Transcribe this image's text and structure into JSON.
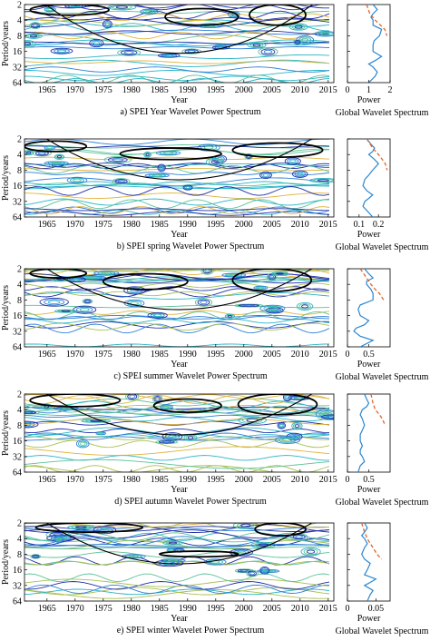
{
  "chart_data": [
    {
      "type": "heatmap",
      "title": "a) SPEI Year Wavelet Power Spectrum",
      "xlabel": "Year",
      "ylabel": "Period/years",
      "xlim": [
        1961,
        2016
      ],
      "xticks": [
        1965,
        1970,
        1975,
        1980,
        1985,
        1990,
        1995,
        2000,
        2005,
        2010,
        2015
      ],
      "yticks": [
        2,
        4,
        8,
        16,
        32,
        64
      ],
      "ylim": [
        2,
        64
      ],
      "yscale": "log2",
      "coi_bottom_period": 20,
      "significant_regions": [
        {
          "x": [
            1962,
            1976
          ],
          "y": [
            2,
            3.2
          ]
        },
        {
          "x": [
            1986,
            1999
          ],
          "y": [
            2.4,
            5
          ]
        },
        {
          "x": [
            2001,
            2011
          ],
          "y": [
            2,
            5
          ]
        }
      ],
      "global": {
        "title": "Global Wavelet Spectrum",
        "xlabel": "Power",
        "xlim": [
          0,
          2
        ],
        "xticks": [
          0,
          1,
          2
        ],
        "power": [
          [
            2,
            1.2
          ],
          [
            2.5,
            1.4
          ],
          [
            3,
            1.2
          ],
          [
            3.5,
            1.1
          ],
          [
            4,
            1.2
          ],
          [
            5,
            1.2
          ],
          [
            6,
            1.6
          ],
          [
            8,
            1.5
          ],
          [
            10,
            1.25
          ],
          [
            12,
            1.2
          ],
          [
            16,
            1.2
          ],
          [
            20,
            1.6
          ],
          [
            24,
            1.3
          ],
          [
            28,
            1.0
          ],
          [
            32,
            1.2
          ],
          [
            40,
            1.4
          ],
          [
            48,
            1.3
          ],
          [
            64,
            1.0
          ]
        ],
        "significance": [
          [
            2,
            0.9
          ],
          [
            3,
            1.05
          ],
          [
            4,
            1.3
          ],
          [
            5,
            1.55
          ],
          [
            6,
            1.75
          ],
          [
            8,
            1.85
          ]
        ]
      }
    },
    {
      "type": "heatmap",
      "title": "b) SPEI spring Wavelet Power Spectrum",
      "xlabel": "Year",
      "ylabel": "Period/years",
      "xlim": [
        1961,
        2016
      ],
      "xticks": [
        1965,
        1970,
        1975,
        1980,
        1985,
        1990,
        1995,
        2000,
        2005,
        2010,
        2015
      ],
      "yticks": [
        2,
        4,
        8,
        16,
        32,
        64
      ],
      "ylim": [
        2,
        64
      ],
      "yscale": "log2",
      "coi_bottom_period": 14,
      "significant_regions": [
        {
          "x": [
            1961,
            1972
          ],
          "y": [
            2.2,
            3.5
          ]
        },
        {
          "x": [
            1978,
            1996
          ],
          "y": [
            3,
            5
          ]
        },
        {
          "x": [
            1998,
            2014
          ],
          "y": [
            2.4,
            4.5
          ]
        }
      ],
      "global": {
        "title": "Global Wavelet Spectrum",
        "xlabel": "Power",
        "xlim": [
          0.04,
          0.26
        ],
        "xticks": [
          0.1,
          0.2
        ],
        "power": [
          [
            2,
            0.14
          ],
          [
            2.5,
            0.16
          ],
          [
            3,
            0.18
          ],
          [
            3.5,
            0.17
          ],
          [
            4,
            0.15
          ],
          [
            5,
            0.18
          ],
          [
            6,
            0.2
          ],
          [
            8,
            0.17
          ],
          [
            10,
            0.15
          ],
          [
            12,
            0.13
          ],
          [
            16,
            0.12
          ],
          [
            20,
            0.14
          ],
          [
            24,
            0.17
          ],
          [
            28,
            0.15
          ],
          [
            32,
            0.13
          ],
          [
            40,
            0.12
          ],
          [
            48,
            0.14
          ],
          [
            64,
            0.17
          ]
        ],
        "significance": [
          [
            2,
            0.14
          ],
          [
            3,
            0.17
          ],
          [
            4,
            0.2
          ],
          [
            5,
            0.22
          ],
          [
            6,
            0.235
          ],
          [
            8,
            0.245
          ]
        ]
      }
    },
    {
      "type": "heatmap",
      "title": "c) SPEI summer Wavelet Power Spectrum",
      "xlabel": "Year",
      "ylabel": "Period/years",
      "xlim": [
        1961,
        2016
      ],
      "xticks": [
        1965,
        1970,
        1975,
        1980,
        1985,
        1990,
        1995,
        2000,
        2005,
        2010,
        2015
      ],
      "yticks": [
        2,
        4,
        8,
        16,
        32,
        64
      ],
      "ylim": [
        2,
        64
      ],
      "yscale": "log2",
      "coi_bottom_period": 14,
      "significant_regions": [
        {
          "x": [
            1962,
            1972
          ],
          "y": [
            2,
            3
          ]
        },
        {
          "x": [
            1975,
            1990
          ],
          "y": [
            2.5,
            5
          ]
        },
        {
          "x": [
            1998,
            2012
          ],
          "y": [
            2,
            5.5
          ]
        }
      ],
      "global": {
        "title": "Global Wavelet Spectrum",
        "xlabel": "Power",
        "xlim": [
          0,
          1
        ],
        "xticks": [
          0,
          0.5
        ],
        "power": [
          [
            2,
            0.4
          ],
          [
            2.5,
            0.5
          ],
          [
            3,
            0.6
          ],
          [
            3.5,
            0.45
          ],
          [
            4,
            0.45
          ],
          [
            5,
            0.55
          ],
          [
            6,
            0.6
          ],
          [
            8,
            0.6
          ],
          [
            10,
            0.3
          ],
          [
            12,
            0.25
          ],
          [
            16,
            0.3
          ],
          [
            20,
            0.5
          ],
          [
            24,
            0.4
          ],
          [
            28,
            0.2
          ],
          [
            32,
            0.15
          ],
          [
            40,
            0.3
          ],
          [
            48,
            0.6
          ],
          [
            64,
            0.3
          ]
        ],
        "significance": [
          [
            2,
            0.3
          ],
          [
            3,
            0.45
          ],
          [
            4,
            0.55
          ],
          [
            5,
            0.65
          ],
          [
            6,
            0.75
          ],
          [
            8,
            0.85
          ]
        ]
      }
    },
    {
      "type": "heatmap",
      "title": "d) SPEI autumn Wavelet Power Spectrum",
      "xlabel": "Year",
      "ylabel": "Period/years",
      "xlim": [
        1961,
        2016
      ],
      "xticks": [
        1965,
        1970,
        1975,
        1980,
        1985,
        1990,
        1995,
        2000,
        2005,
        2010,
        2015
      ],
      "yticks": [
        2,
        4,
        8,
        16,
        32,
        64
      ],
      "ylim": [
        2,
        64
      ],
      "yscale": "log2",
      "coi_bottom_period": 14,
      "significant_regions": [
        {
          "x": [
            1962,
            1978
          ],
          "y": [
            2,
            3.5
          ]
        },
        {
          "x": [
            1984,
            1996
          ],
          "y": [
            2.5,
            4.5
          ]
        },
        {
          "x": [
            1999,
            2013
          ],
          "y": [
            2,
            5
          ]
        }
      ],
      "global": {
        "title": "Global Wavelet Spectrum",
        "xlabel": "Power",
        "xlim": [
          0,
          1
        ],
        "xticks": [
          0,
          0.5
        ],
        "power": [
          [
            2,
            0.4
          ],
          [
            2.5,
            0.45
          ],
          [
            3,
            0.5
          ],
          [
            3.5,
            0.45
          ],
          [
            4,
            0.35
          ],
          [
            5,
            0.3
          ],
          [
            6,
            0.35
          ],
          [
            8,
            0.4
          ],
          [
            10,
            0.35
          ],
          [
            12,
            0.3
          ],
          [
            16,
            0.3
          ],
          [
            20,
            0.35
          ],
          [
            24,
            0.3
          ],
          [
            28,
            0.3
          ],
          [
            32,
            0.35
          ],
          [
            40,
            0.4
          ],
          [
            48,
            0.3
          ],
          [
            64,
            0.25
          ]
        ],
        "significance": [
          [
            2,
            0.55
          ],
          [
            3,
            0.6
          ],
          [
            4,
            0.65
          ],
          [
            5,
            0.75
          ],
          [
            6,
            0.82
          ],
          [
            8,
            0.88
          ]
        ]
      }
    },
    {
      "type": "heatmap",
      "title": "e) SPEI winter Wavelet Power Spectrum",
      "xlabel": "Year",
      "ylabel": "Period/years",
      "xlim": [
        1961,
        2016
      ],
      "xticks": [
        1965,
        1970,
        1975,
        1980,
        1985,
        1990,
        1995,
        2000,
        2005,
        2010,
        2015
      ],
      "yticks": [
        2,
        4,
        8,
        16,
        32,
        64
      ],
      "ylim": [
        2,
        64
      ],
      "yscale": "log2",
      "coi_bottom_period": 14,
      "significant_regions": [
        {
          "x": [
            1963,
            1982
          ],
          "y": [
            2,
            3
          ]
        },
        {
          "x": [
            1985,
            1999
          ],
          "y": [
            7,
            9
          ]
        },
        {
          "x": [
            2002,
            2011
          ],
          "y": [
            2,
            3.5
          ]
        }
      ],
      "global": {
        "title": "Global Wavelet Spectrum",
        "xlabel": "Power",
        "xlim": [
          0,
          0.075
        ],
        "xticks": [
          0,
          0.05
        ],
        "power": [
          [
            2,
            0.03
          ],
          [
            2.5,
            0.035
          ],
          [
            3,
            0.03
          ],
          [
            3.5,
            0.025
          ],
          [
            4,
            0.03
          ],
          [
            5,
            0.035
          ],
          [
            6,
            0.03
          ],
          [
            8,
            0.025
          ],
          [
            10,
            0.03
          ],
          [
            12,
            0.04
          ],
          [
            16,
            0.035
          ],
          [
            20,
            0.03
          ],
          [
            24,
            0.05
          ],
          [
            28,
            0.04
          ],
          [
            32,
            0.03
          ],
          [
            40,
            0.045
          ],
          [
            48,
            0.04
          ],
          [
            64,
            0.035
          ]
        ],
        "significance": [
          [
            2,
            0.025
          ],
          [
            3,
            0.03
          ],
          [
            4,
            0.035
          ],
          [
            5,
            0.04
          ],
          [
            6,
            0.045
          ],
          [
            8,
            0.052
          ],
          [
            10,
            0.06
          ]
        ]
      }
    }
  ]
}
